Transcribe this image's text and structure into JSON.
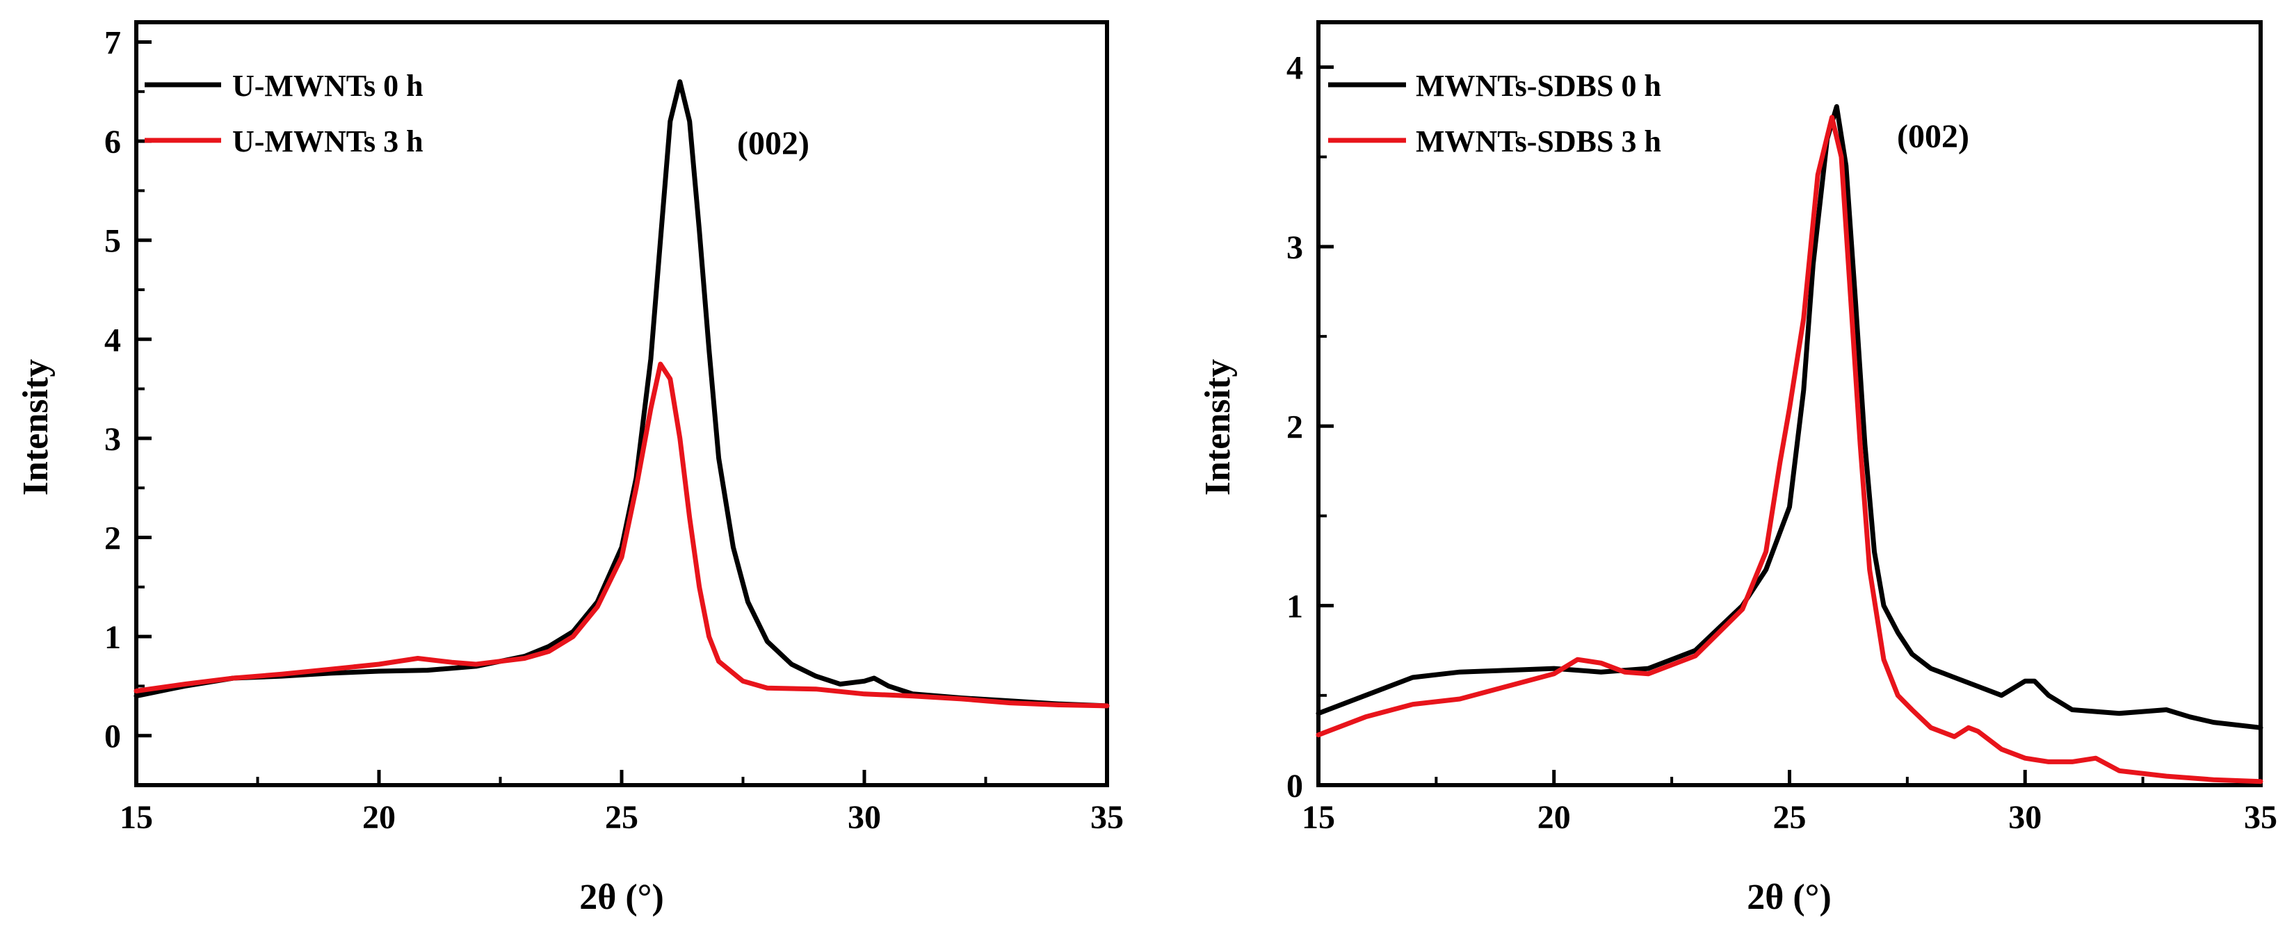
{
  "chart_data": [
    {
      "type": "line",
      "xlabel": "2θ (°)",
      "ylabel": "Intensity",
      "xlim": [
        15,
        35
      ],
      "ylim": [
        -0.5,
        7.2
      ],
      "xticks": [
        15,
        20,
        25,
        30,
        35
      ],
      "yticks": [
        0,
        1,
        2,
        3,
        4,
        5,
        6,
        7
      ],
      "legend_position": "top-left",
      "annotation": {
        "text": "(002)",
        "x": 28.8,
        "y": 6.2
      },
      "series": [
        {
          "name": "U-MWNTs 0 h",
          "color": "#000000",
          "x": [
            15,
            16,
            17,
            18,
            19,
            20,
            21,
            22,
            23,
            23.5,
            24,
            24.5,
            25,
            25.3,
            25.6,
            25.8,
            26,
            26.2,
            26.4,
            26.6,
            26.8,
            27,
            27.3,
            27.6,
            28,
            28.5,
            29,
            29.5,
            30,
            30.2,
            30.5,
            31,
            32,
            33,
            34,
            35
          ],
          "y": [
            0.4,
            0.5,
            0.58,
            0.6,
            0.63,
            0.65,
            0.66,
            0.7,
            0.8,
            0.9,
            1.05,
            1.35,
            1.9,
            2.6,
            3.8,
            5.0,
            6.2,
            6.6,
            6.2,
            5.1,
            3.9,
            2.8,
            1.9,
            1.35,
            0.95,
            0.72,
            0.6,
            0.52,
            0.55,
            0.58,
            0.5,
            0.42,
            0.38,
            0.35,
            0.32,
            0.3
          ]
        },
        {
          "name": "U-MWNTs 3 h",
          "color": "#e8141b",
          "x": [
            15,
            16,
            17,
            18,
            19,
            20,
            20.8,
            21.5,
            22,
            23,
            23.5,
            24,
            24.5,
            25,
            25.3,
            25.6,
            25.8,
            26,
            26.2,
            26.4,
            26.6,
            26.8,
            27,
            27.5,
            28,
            29,
            30,
            31,
            32,
            33,
            34,
            35
          ],
          "y": [
            0.45,
            0.52,
            0.58,
            0.62,
            0.67,
            0.72,
            0.78,
            0.74,
            0.72,
            0.78,
            0.85,
            1.0,
            1.3,
            1.8,
            2.5,
            3.3,
            3.75,
            3.6,
            3.0,
            2.2,
            1.5,
            1.0,
            0.75,
            0.55,
            0.48,
            0.47,
            0.42,
            0.4,
            0.37,
            0.33,
            0.31,
            0.3
          ]
        }
      ]
    },
    {
      "type": "line",
      "xlabel": "2θ (°)",
      "ylabel": "Intensity",
      "xlim": [
        15,
        35
      ],
      "ylim": [
        0,
        4.25
      ],
      "xticks": [
        15,
        20,
        25,
        30,
        35
      ],
      "yticks": [
        0,
        1,
        2,
        3,
        4
      ],
      "legend_position": "top-left",
      "annotation": {
        "text": "(002)",
        "x": 28.7,
        "y": 3.6
      },
      "series": [
        {
          "name": "MWNTs-SDBS 0 h",
          "color": "#000000",
          "x": [
            15,
            16,
            17,
            18,
            19,
            20,
            21,
            22,
            23,
            24,
            24.5,
            25,
            25.3,
            25.5,
            25.8,
            26,
            26.2,
            26.4,
            26.6,
            26.8,
            27,
            27.3,
            27.6,
            28,
            28.5,
            29,
            29.5,
            30,
            30.2,
            30.5,
            31,
            32,
            32.5,
            33,
            33.5,
            34,
            35
          ],
          "y": [
            0.4,
            0.5,
            0.6,
            0.63,
            0.64,
            0.65,
            0.63,
            0.65,
            0.75,
            1.0,
            1.2,
            1.55,
            2.2,
            2.9,
            3.6,
            3.78,
            3.45,
            2.7,
            1.9,
            1.3,
            1.0,
            0.85,
            0.73,
            0.65,
            0.6,
            0.55,
            0.5,
            0.58,
            0.58,
            0.5,
            0.42,
            0.4,
            0.41,
            0.42,
            0.38,
            0.35,
            0.32
          ]
        },
        {
          "name": "MWNTs-SDBS 3 h",
          "color": "#e8141b",
          "x": [
            15,
            16,
            17,
            18,
            19,
            20,
            20.5,
            21,
            21.5,
            22,
            23,
            24,
            24.5,
            24.8,
            25,
            25.3,
            25.6,
            25.9,
            26.1,
            26.3,
            26.5,
            26.7,
            27,
            27.3,
            27.6,
            28,
            28.5,
            28.8,
            29,
            29.5,
            30,
            30.5,
            31,
            31.5,
            32,
            33,
            34,
            35
          ],
          "y": [
            0.28,
            0.38,
            0.45,
            0.48,
            0.55,
            0.62,
            0.7,
            0.68,
            0.63,
            0.62,
            0.72,
            0.98,
            1.3,
            1.8,
            2.1,
            2.6,
            3.4,
            3.72,
            3.5,
            2.7,
            1.9,
            1.2,
            0.7,
            0.5,
            0.42,
            0.32,
            0.27,
            0.32,
            0.3,
            0.2,
            0.15,
            0.13,
            0.13,
            0.15,
            0.08,
            0.05,
            0.03,
            0.02
          ]
        }
      ]
    }
  ]
}
